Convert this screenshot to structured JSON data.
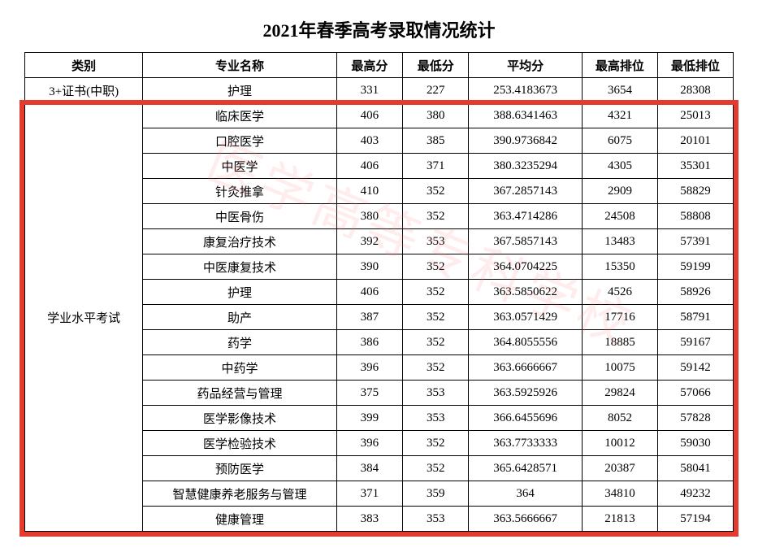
{
  "title": "2021年春季高考录取情况统计",
  "columns": [
    "类别",
    "专业名称",
    "最高分",
    "最低分",
    "平均分",
    "最高排位",
    "最低排位"
  ],
  "category1": "3+证书(中职)",
  "category2": "学业水平考试",
  "row_cat1": [
    "护理",
    "331",
    "227",
    "253.4183673",
    "3654",
    "28308"
  ],
  "rows_cat2": [
    [
      "临床医学",
      "406",
      "380",
      "388.6341463",
      "4321",
      "25013"
    ],
    [
      "口腔医学",
      "403",
      "385",
      "390.9736842",
      "6075",
      "20101"
    ],
    [
      "中医学",
      "406",
      "371",
      "380.3235294",
      "4305",
      "35301"
    ],
    [
      "针灸推拿",
      "410",
      "352",
      "367.2857143",
      "2909",
      "58829"
    ],
    [
      "中医骨伤",
      "380",
      "352",
      "363.4714286",
      "24508",
      "58808"
    ],
    [
      "康复治疗技术",
      "392",
      "353",
      "367.5857143",
      "13483",
      "57391"
    ],
    [
      "中医康复技术",
      "390",
      "352",
      "364.0704225",
      "15350",
      "59199"
    ],
    [
      "护理",
      "406",
      "352",
      "363.5850622",
      "4526",
      "58926"
    ],
    [
      "助产",
      "387",
      "352",
      "363.0571429",
      "17716",
      "58791"
    ],
    [
      "药学",
      "386",
      "352",
      "364.8055556",
      "18885",
      "59167"
    ],
    [
      "中药学",
      "396",
      "352",
      "363.6666667",
      "10075",
      "59142"
    ],
    [
      "药品经营与管理",
      "375",
      "353",
      "363.5925926",
      "29824",
      "57066"
    ],
    [
      "医学影像技术",
      "399",
      "353",
      "366.6455696",
      "8052",
      "57828"
    ],
    [
      "医学检验技术",
      "396",
      "352",
      "363.7733333",
      "10012",
      "59030"
    ],
    [
      "预防医学",
      "384",
      "352",
      "365.6428571",
      "20387",
      "58041"
    ],
    [
      "智慧健康养老服务与管理",
      "371",
      "359",
      "364",
      "34810",
      "49232"
    ],
    [
      "健康管理",
      "383",
      "353",
      "363.5666667",
      "21813",
      "57194"
    ]
  ],
  "highlight_box": {
    "border_color": "#e33b2d",
    "border_width": 6
  },
  "watermark_text": "医学高等专科学校"
}
